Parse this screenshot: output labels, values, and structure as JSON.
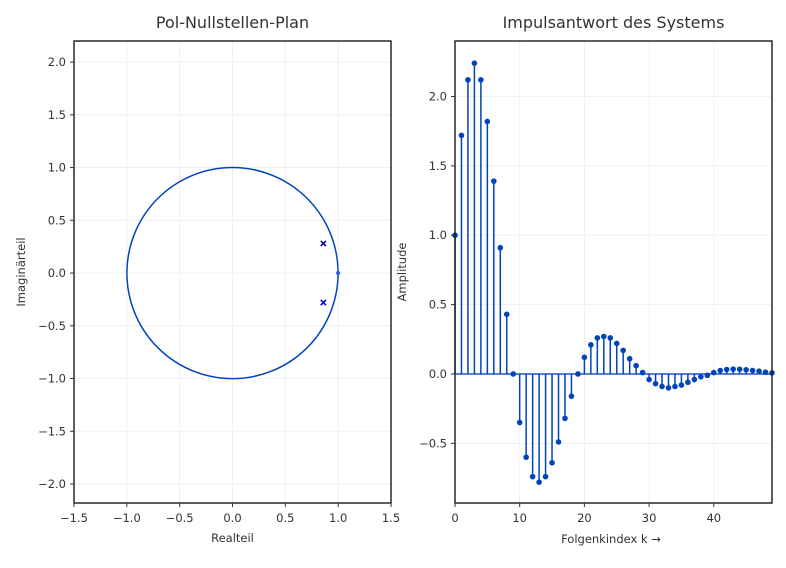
{
  "chart_data": [
    {
      "type": "scatter",
      "title": "Pol-Nullstellen-Plan",
      "xlabel": "Realteil",
      "ylabel": "Imaginärteil",
      "xlim": [
        -1.5,
        1.5
      ],
      "ylim": [
        -2.18,
        2.2
      ],
      "xticks": [
        -1.5,
        -1.0,
        -0.5,
        0.0,
        0.5,
        1.0,
        1.5
      ],
      "xtick_labels": [
        "−1.5",
        "−1.0",
        "−0.5",
        "0.0",
        "0.5",
        "1.0",
        "1.5"
      ],
      "yticks": [
        -2.0,
        -1.5,
        -1.0,
        -0.5,
        0.0,
        0.5,
        1.0,
        1.5,
        2.0
      ],
      "ytick_labels": [
        "−2.0",
        "−1.5",
        "−1.0",
        "−0.5",
        "0.0",
        "0.5",
        "1.0",
        "1.5",
        "2.0"
      ],
      "grid": true,
      "unit_circle": {
        "center": [
          0,
          0
        ],
        "radius": 1.0,
        "color": "#0044bb"
      },
      "poles": [
        {
          "re": 0.86,
          "im": 0.28
        },
        {
          "re": 0.86,
          "im": -0.28
        }
      ],
      "zeros": [
        {
          "re": 1.0,
          "im": 0.0
        }
      ],
      "pole_color": "#0000cc",
      "zero_color": "#2255dd"
    },
    {
      "type": "stem",
      "title": "Impulsantwort des Systems",
      "xlabel": "Folgenkindex k →",
      "ylabel": "Amplitude",
      "xlim": [
        0,
        49
      ],
      "ylim": [
        -0.93,
        2.4
      ],
      "xticks": [
        0,
        10,
        20,
        30,
        40
      ],
      "xtick_labels": [
        "0",
        "10",
        "20",
        "30",
        "40"
      ],
      "yticks": [
        -0.5,
        0.0,
        0.5,
        1.0,
        1.5,
        2.0
      ],
      "ytick_labels": [
        "−0.5",
        "0.0",
        "0.5",
        "1.0",
        "1.5",
        "2.0"
      ],
      "grid": true,
      "color": "#0044bb",
      "baseline_color": "#5a7fd0",
      "x": [
        0,
        1,
        2,
        3,
        4,
        5,
        6,
        7,
        8,
        9,
        10,
        11,
        12,
        13,
        14,
        15,
        16,
        17,
        18,
        19,
        20,
        21,
        22,
        23,
        24,
        25,
        26,
        27,
        28,
        29,
        30,
        31,
        32,
        33,
        34,
        35,
        36,
        37,
        38,
        39,
        40,
        41,
        42,
        43,
        44,
        45,
        46,
        47,
        48,
        49
      ],
      "values": [
        1.0,
        1.72,
        2.12,
        2.24,
        2.12,
        1.82,
        1.39,
        0.91,
        0.43,
        0.0,
        -0.35,
        -0.6,
        -0.74,
        -0.78,
        -0.74,
        -0.64,
        -0.49,
        -0.32,
        -0.16,
        0.0,
        0.12,
        0.21,
        0.26,
        0.27,
        0.26,
        0.22,
        0.17,
        0.11,
        0.06,
        0.01,
        -0.04,
        -0.07,
        -0.09,
        -0.1,
        -0.09,
        -0.08,
        -0.06,
        -0.04,
        -0.02,
        -0.01,
        0.01,
        0.025,
        0.032,
        0.035,
        0.034,
        0.03,
        0.025,
        0.02,
        0.013,
        0.008
      ]
    }
  ]
}
